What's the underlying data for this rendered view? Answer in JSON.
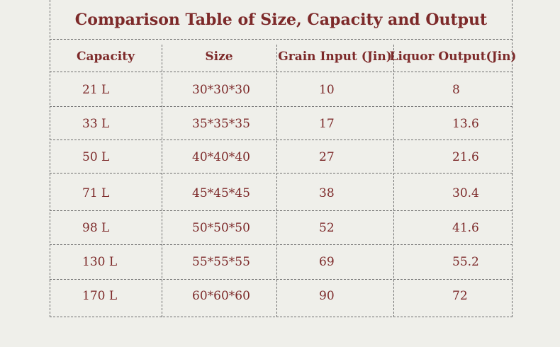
{
  "title": "Comparison Table of Size, Capacity and Output",
  "headers": [
    "Capacity",
    "Size",
    "Grain Input (Jin)",
    "Liquor Output(Jin)"
  ],
  "rows": [
    [
      "21 L",
      "30*30*30",
      "10",
      "8"
    ],
    [
      "33 L",
      "35*35*35",
      "17",
      "13.6"
    ],
    [
      "50 L",
      "40*40*40",
      "27",
      "21.6"
    ],
    [
      "71 L",
      "45*45*45",
      "38",
      "30.4"
    ],
    [
      "98 L",
      "50*50*50",
      "52",
      "41.6"
    ],
    [
      "130 L",
      "55*55*55",
      "69",
      "55.2"
    ],
    [
      "170 L",
      "60*60*60",
      "90",
      "72"
    ]
  ],
  "colors": {
    "text": "#7d2a2a",
    "background": "#efefea",
    "rules": "#6e6e6e"
  }
}
